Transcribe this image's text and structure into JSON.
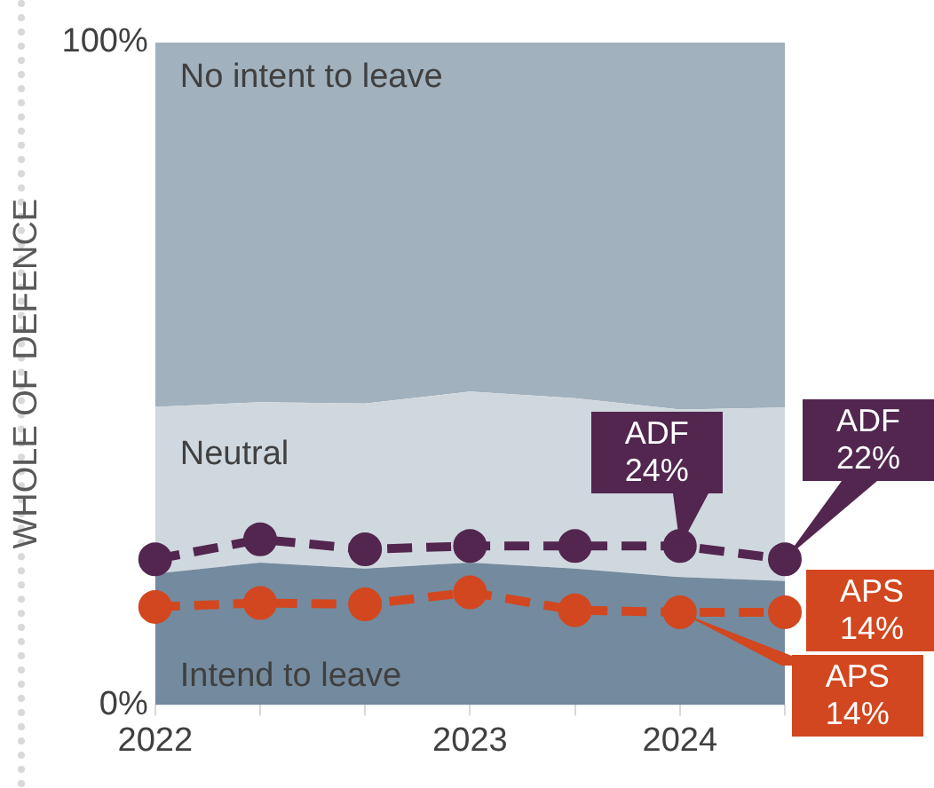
{
  "chart_data": {
    "type": "area",
    "stacked": true,
    "ylabel": "WHOLE OF DEFENCE",
    "categories": [
      "2022",
      null,
      null,
      "2023",
      null,
      "2024",
      null
    ],
    "ylim": [
      0,
      100
    ],
    "yticks": [
      {
        "value": 0,
        "label": "0%"
      },
      {
        "value": 100,
        "label": "100%"
      }
    ],
    "grid": false,
    "legend": false,
    "series": [
      {
        "name": "Intend to leave",
        "color": "#748a9e",
        "values": [
          19.8,
          21.5,
          20.6,
          21.5,
          20.6,
          19.3,
          18.7
        ]
      },
      {
        "name": "Neutral",
        "color": "#d0d8df",
        "values": [
          25.2,
          24.2,
          24.9,
          25.8,
          25.7,
          25.3,
          26.2
        ]
      },
      {
        "name": "No intent to leave",
        "color": "#a1b1bd",
        "values": [
          55.0,
          54.3,
          54.5,
          52.7,
          53.7,
          55.4,
          55.1
        ]
      },
      {
        "name": "ADF",
        "type": "line",
        "color": "#52264f",
        "marker": "circle",
        "line_style": "dashed",
        "values": [
          22,
          25,
          23.5,
          24,
          24,
          24,
          22
        ],
        "value_labels": [
          null,
          null,
          null,
          null,
          null,
          "24%",
          "22%"
        ]
      },
      {
        "name": "APS",
        "type": "line",
        "color": "#d2471f",
        "marker": "circle",
        "line_style": "dashed",
        "values": [
          14.8,
          15.4,
          15.2,
          17,
          14.3,
          14,
          14
        ],
        "value_labels": [
          null,
          null,
          null,
          null,
          null,
          "14%",
          "14%"
        ]
      }
    ]
  }
}
